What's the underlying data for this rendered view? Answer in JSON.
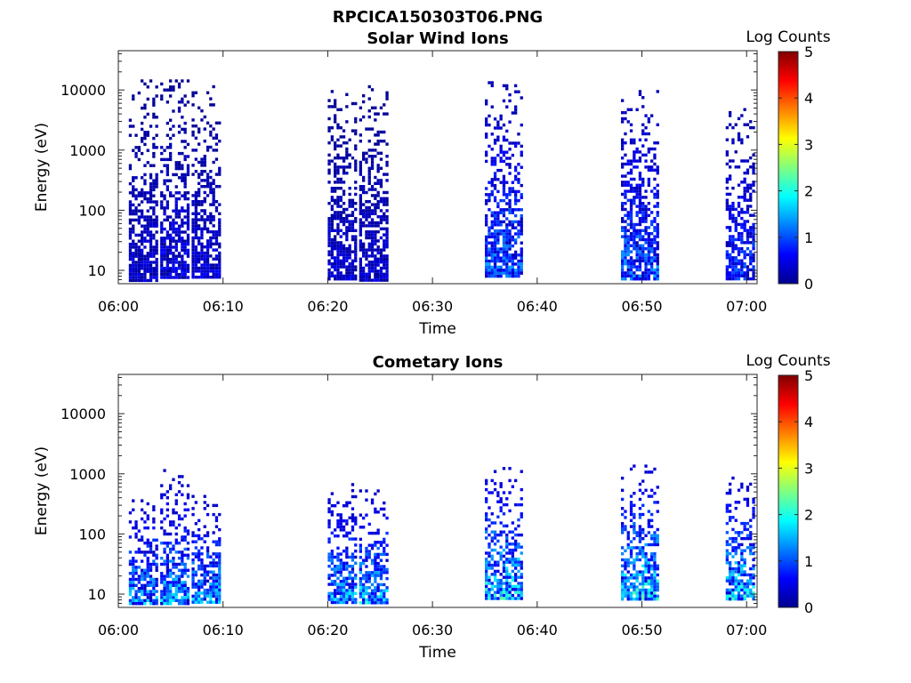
{
  "figure": {
    "title": "RPCICA150303T06.PNG"
  },
  "chart_data": [
    {
      "type": "heatmap",
      "title": "Solar Wind Ions",
      "xlabel": "Time",
      "ylabel": "Energy (eV)",
      "y_scale": "log",
      "ylim": [
        6,
        45000
      ],
      "xlim": [
        "06:00",
        "07:01"
      ],
      "x_ticks": [
        "06:00",
        "06:10",
        "06:20",
        "06:30",
        "06:40",
        "06:50",
        "07:00"
      ],
      "y_ticks": [
        "10",
        "100",
        "1000",
        "10000"
      ],
      "y_tick_values": [
        10,
        100,
        1000,
        10000
      ],
      "colorbar": {
        "label": "Log Counts",
        "range": [
          0,
          5
        ],
        "ticks": [
          "0",
          "1",
          "2",
          "3",
          "4",
          "5"
        ],
        "colormap": "jet"
      },
      "bursts": [
        {
          "start": "06:01",
          "end": "06:03",
          "e_low": 7,
          "e_high": 15000,
          "level": 0.4
        },
        {
          "start": "06:04",
          "end": "06:06",
          "e_low": 8,
          "e_high": 15000,
          "level": 0.5
        },
        {
          "start": "06:07",
          "end": "06:09",
          "e_low": 8,
          "e_high": 12000,
          "level": 0.4
        },
        {
          "start": "06:20",
          "end": "06:22",
          "e_low": 7,
          "e_high": 10000,
          "level": 0.4
        },
        {
          "start": "06:23",
          "end": "06:25",
          "e_low": 7,
          "e_high": 12000,
          "level": 0.4
        },
        {
          "start": "06:35",
          "end": "06:38",
          "e_low": 8,
          "e_high": 14000,
          "level": 1.0
        },
        {
          "start": "06:48",
          "end": "06:51",
          "e_low": 7,
          "e_high": 10000,
          "level": 1.0
        },
        {
          "start": "06:58",
          "end": "07:00",
          "e_low": 7,
          "e_high": 5000,
          "level": 0.8
        }
      ]
    },
    {
      "type": "heatmap",
      "title": "Cometary Ions",
      "xlabel": "Time",
      "ylabel": "Energy (eV)",
      "y_scale": "log",
      "ylim": [
        6,
        45000
      ],
      "xlim": [
        "06:00",
        "07:01"
      ],
      "x_ticks": [
        "06:00",
        "06:10",
        "06:20",
        "06:30",
        "06:40",
        "06:50",
        "07:00"
      ],
      "y_ticks": [
        "10",
        "100",
        "1000",
        "10000"
      ],
      "y_tick_values": [
        10,
        100,
        1000,
        10000
      ],
      "colorbar": {
        "label": "Log Counts",
        "range": [
          0,
          5
        ],
        "ticks": [
          "0",
          "1",
          "2",
          "3",
          "4",
          "5"
        ],
        "colormap": "jet"
      },
      "bursts": [
        {
          "start": "06:01",
          "end": "06:03",
          "e_low": 7,
          "e_high": 600,
          "level": 1.2
        },
        {
          "start": "06:04",
          "end": "06:06",
          "e_low": 7,
          "e_high": 1200,
          "level": 1.3
        },
        {
          "start": "06:07",
          "end": "06:09",
          "e_low": 7,
          "e_high": 500,
          "level": 1.3
        },
        {
          "start": "06:20",
          "end": "06:22",
          "e_low": 7,
          "e_high": 700,
          "level": 1.3
        },
        {
          "start": "06:23",
          "end": "06:25",
          "e_low": 7,
          "e_high": 550,
          "level": 1.4
        },
        {
          "start": "06:35",
          "end": "06:38",
          "e_low": 8,
          "e_high": 1300,
          "level": 1.6
        },
        {
          "start": "06:48",
          "end": "06:51",
          "e_low": 8,
          "e_high": 1600,
          "level": 1.6
        },
        {
          "start": "06:58",
          "end": "07:00",
          "e_low": 8,
          "e_high": 900,
          "level": 1.5
        }
      ]
    }
  ]
}
